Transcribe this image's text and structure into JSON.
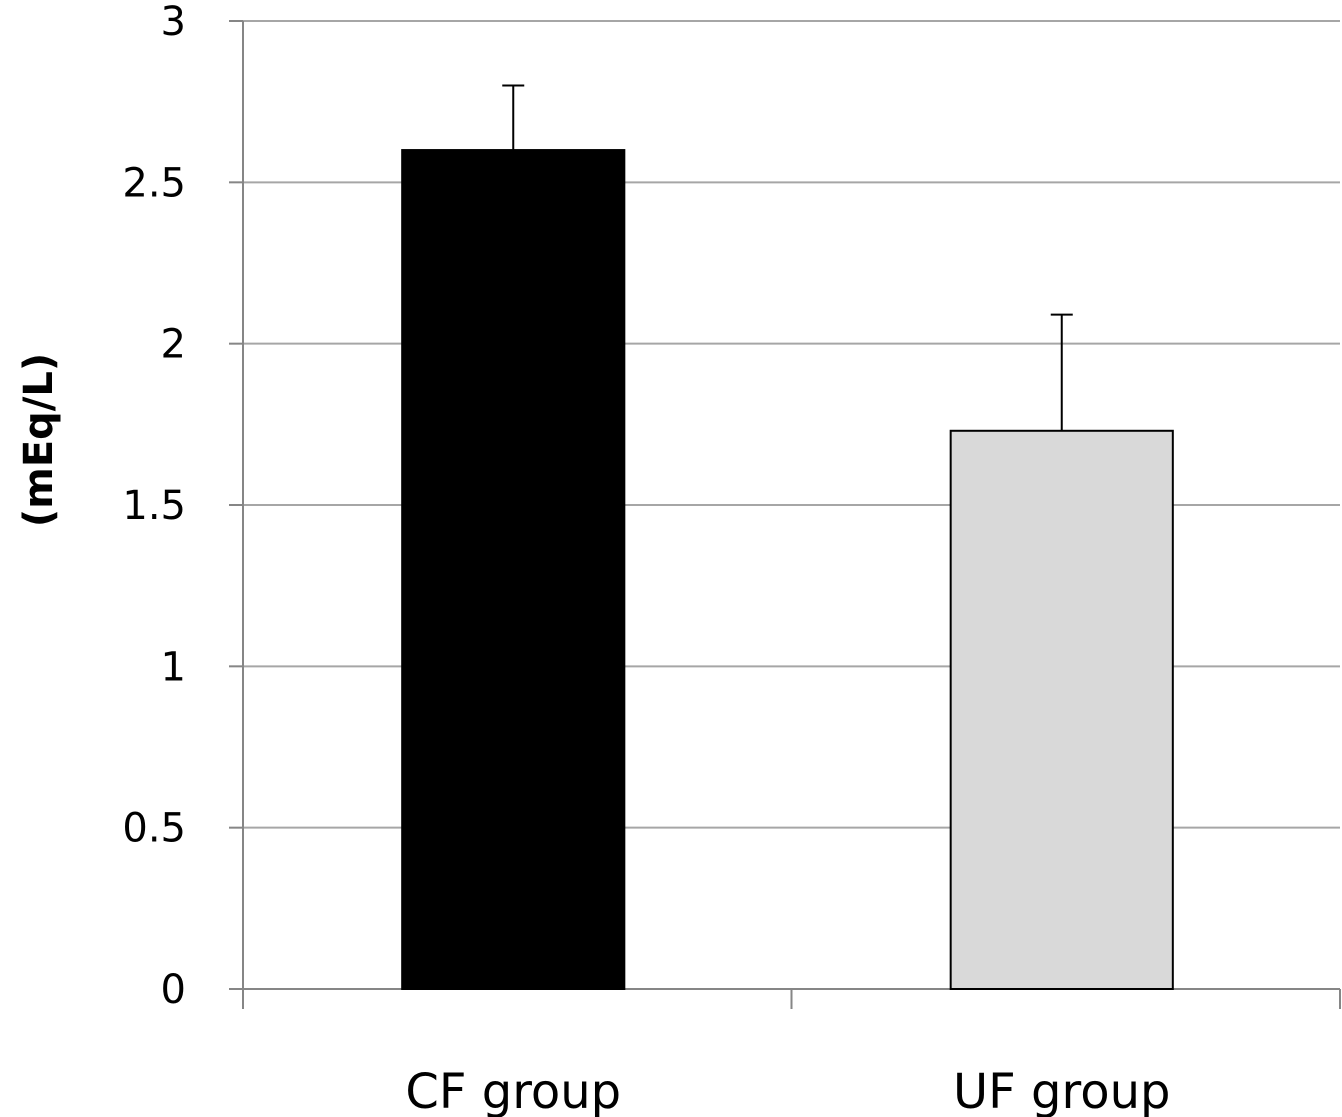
{
  "chart_data": {
    "type": "bar",
    "title": "",
    "xlabel": "",
    "ylabel": "(mEq/L)",
    "categories": [
      "CF group",
      "UF group"
    ],
    "values": [
      2.6,
      1.73
    ],
    "error_bars": [
      0.2,
      0.36
    ],
    "bar_colors": [
      "#000000",
      "#d9d9d9"
    ],
    "bar_border_color": "#000000",
    "ylim": [
      0,
      3
    ],
    "yticks": [
      "0",
      "0.5",
      "1",
      "1.5",
      "2",
      "2.5",
      "3"
    ],
    "ytick_values": [
      0,
      0.5,
      1,
      1.5,
      2,
      2.5,
      3
    ],
    "grid": true,
    "grid_color": "#a6a6a6",
    "axis_color": "#868686",
    "legend": "none"
  }
}
